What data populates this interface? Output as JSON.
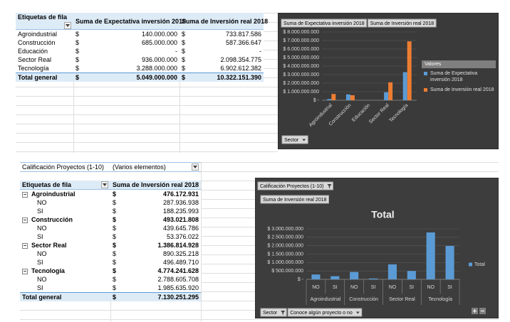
{
  "table1": {
    "headers": [
      "Etiquetas de fila",
      "Suma de Expectativa inversión 2018",
      "Suma de Inversión real 2018"
    ],
    "rows": [
      [
        "Agroindustrial",
        "$",
        "140.000.000",
        "$",
        "733.817.586"
      ],
      [
        "Construcción",
        "$",
        "685.000.000",
        "$",
        "587.366.647"
      ],
      [
        "Educación",
        "$",
        "-",
        "$",
        "-"
      ],
      [
        "Sector Real",
        "$",
        "936.000.000",
        "$",
        "2.098.354.775"
      ],
      [
        "Tecnología",
        "$",
        "3.288.000.000",
        "$",
        "6.902.612.382"
      ]
    ],
    "total": [
      "Total general",
      "$",
      "5.049.000.000",
      "$",
      "10.322.151.390"
    ]
  },
  "table2": {
    "filter": {
      "label": "Calificación Proyectos (1-10)",
      "value": "(Varios elementos)"
    },
    "headers": [
      "Etiquetas de fila",
      "Suma de Inversión real 2018"
    ],
    "groups": [
      {
        "label": "Agroindustrial",
        "currency": "$",
        "value": "476.172.931",
        "rows": [
          [
            "NO",
            "$",
            "287.936.938"
          ],
          [
            "SI",
            "$",
            "188.235.993"
          ]
        ]
      },
      {
        "label": "Construcción",
        "currency": "$",
        "value": "493.021.808",
        "rows": [
          [
            "NO",
            "$",
            "439.645.786"
          ],
          [
            "SI",
            "$",
            "53.376.022"
          ]
        ]
      },
      {
        "label": "Sector Real",
        "currency": "$",
        "value": "1.386.814.928",
        "rows": [
          [
            "NO",
            "$",
            "890.325.218"
          ],
          [
            "SI",
            "$",
            "496.489.710"
          ]
        ]
      },
      {
        "label": "Tecnología",
        "currency": "$",
        "value": "4.774.241.628",
        "rows": [
          [
            "NO",
            "$",
            "2.788.605.708"
          ],
          [
            "SI",
            "$",
            "1.985.635.920"
          ]
        ]
      }
    ],
    "total": [
      "Total general",
      "$",
      "7.130.251.295"
    ]
  },
  "chart_data": [
    {
      "type": "bar",
      "legend_title": "Valores",
      "legend": "right",
      "grid": true,
      "categories": [
        "Agroindustrial",
        "Construcción",
        "Educación",
        "Sector Real",
        "Tecnología"
      ],
      "series": [
        {
          "name": "Suma de Expectativa inversión 2018",
          "color": "#5b9bd5",
          "values": [
            140000000,
            685000000,
            0,
            936000000,
            3288000000
          ]
        },
        {
          "name": "Suma de Inversión real 2018",
          "color": "#ed7d31",
          "values": [
            733817586,
            587366647,
            0,
            2098354775,
            6902612382
          ]
        }
      ],
      "ylim": [
        0,
        8000000000
      ],
      "yticks": [
        {
          "value": 0,
          "label": "$ -"
        },
        {
          "value": 1000000000,
          "label": "$ 1.000.000.000"
        },
        {
          "value": 2000000000,
          "label": "$ 2.000.000.000"
        },
        {
          "value": 3000000000,
          "label": "$ 3.000.000.000"
        },
        {
          "value": 4000000000,
          "label": "$ 4.000.000.000"
        },
        {
          "value": 5000000000,
          "label": "$ 5.000.000.000"
        },
        {
          "value": 6000000000,
          "label": "$ 6.000.000.000"
        },
        {
          "value": 7000000000,
          "label": "$ 7.000.000.000"
        },
        {
          "value": 8000000000,
          "label": "$ 8.000.000.000"
        }
      ],
      "axis_buttons": [
        "Sector"
      ]
    },
    {
      "type": "bar",
      "title": "Total",
      "legend": "right",
      "grid": true,
      "filter_buttons": [
        "Calificación Proyectos (1-10)"
      ],
      "value_field": "Suma de Inversión real 2018",
      "categories": [
        "NO",
        "SI",
        "NO",
        "SI",
        "NO",
        "SI",
        "NO",
        "SI"
      ],
      "category_groups": [
        "Agroindustrial",
        "Construcción",
        "Sector Real",
        "Tecnología"
      ],
      "series": [
        {
          "name": "Total",
          "color": "#5b9bd5",
          "values": [
            287936938,
            188235993,
            439645786,
            53376022,
            890325218,
            496489710,
            2788605708,
            1985635920
          ]
        }
      ],
      "ylim": [
        0,
        3000000000
      ],
      "yticks": [
        {
          "value": 0,
          "label": "$ -"
        },
        {
          "value": 500000000,
          "label": "$ 500.000.000"
        },
        {
          "value": 1000000000,
          "label": "$ 1.000.000.000"
        },
        {
          "value": 1500000000,
          "label": "$ 1.500.000.000"
        },
        {
          "value": 2000000000,
          "label": "$ 2.000.000.000"
        },
        {
          "value": 2500000000,
          "label": "$ 2.500.000.000"
        },
        {
          "value": 3000000000,
          "label": "$ 3.000.000.000"
        }
      ],
      "axis_buttons": [
        "Sector",
        "Conoce algún proyecto o no"
      ]
    }
  ]
}
